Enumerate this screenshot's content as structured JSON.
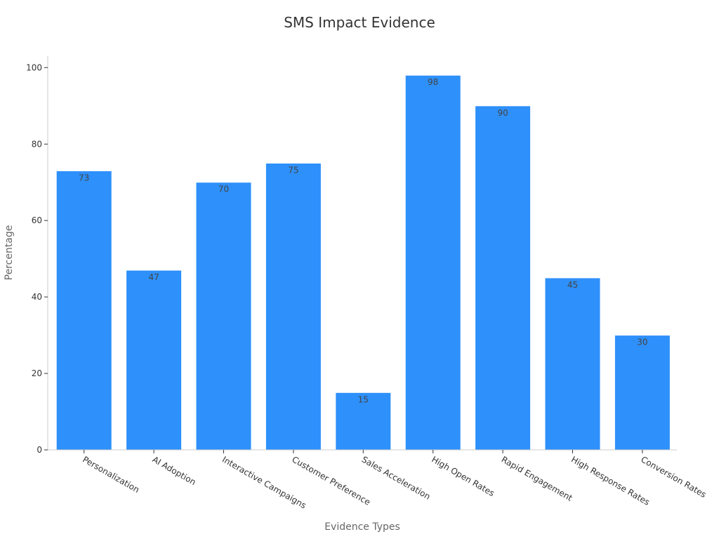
{
  "chart_data": {
    "type": "bar",
    "title": "SMS Impact Evidence",
    "xlabel": "Evidence Types",
    "ylabel": "Percentage",
    "categories": [
      "Personalization",
      "AI Adoption",
      "Interactive Campaigns",
      "Customer Preference",
      "Sales Acceleration",
      "High Open Rates",
      "Rapid Engagement",
      "High Response Rates",
      "Conversion Rates"
    ],
    "values": [
      73,
      47,
      70,
      75,
      15,
      98,
      90,
      45,
      30
    ],
    "data_labels": [
      "73",
      "47",
      "70",
      "75",
      "15",
      "98",
      "90",
      "45",
      "30"
    ],
    "yticks": [
      0,
      20,
      40,
      60,
      80,
      100
    ],
    "ylim": [
      0,
      103
    ],
    "bar_color": "#2e90fa",
    "grid": false,
    "legend": "none"
  }
}
